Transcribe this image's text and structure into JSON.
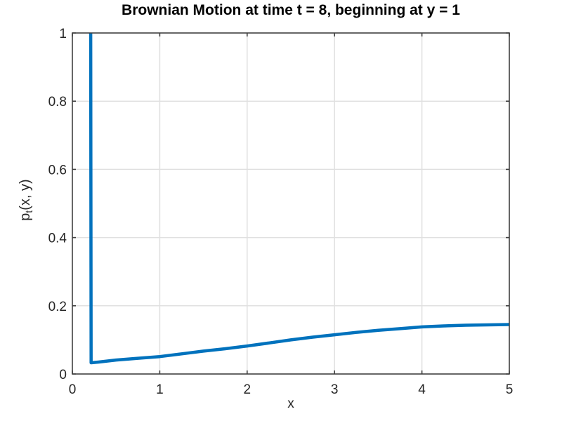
{
  "colors": {
    "background": "#ffffff",
    "axis_frame": "#404040",
    "grid": "#e0e0e0",
    "curve": "#0072BD",
    "title_text": "#000000",
    "tick_text": "#262626"
  },
  "chart_data": {
    "type": "line",
    "title": "Brownian Motion at time t = 8, beginning at y = 1",
    "xlabel": "x",
    "ylabel": "p_t(x, y)",
    "ylabel_parts": {
      "base": "p",
      "sub": "t",
      "rest": "(x, y)"
    },
    "xlim": [
      0,
      5
    ],
    "ylim": [
      0,
      1
    ],
    "xticks": [
      0,
      1,
      2,
      3,
      4,
      5
    ],
    "xtick_labels": [
      "0",
      "1",
      "2",
      "3",
      "4",
      "5"
    ],
    "yticks": [
      0,
      0.2,
      0.4,
      0.6,
      0.8,
      1
    ],
    "ytick_labels": [
      "0",
      "0.2",
      "0.4",
      "0.6",
      "0.8",
      "1"
    ],
    "grid": true,
    "box": true,
    "tick_direction": "in",
    "legend": null,
    "line_width": 4.5,
    "series": [
      {
        "name": "p_t(x, y)",
        "color": "#0072BD",
        "clipped_at_top": true,
        "spike_x": 0.21,
        "points": [
          [
            0.21,
            1.0
          ],
          [
            0.215,
            0.033
          ],
          [
            0.3,
            0.035
          ],
          [
            0.5,
            0.041
          ],
          [
            0.75,
            0.046
          ],
          [
            1.0,
            0.051
          ],
          [
            1.25,
            0.059
          ],
          [
            1.5,
            0.067
          ],
          [
            1.75,
            0.074
          ],
          [
            2.0,
            0.082
          ],
          [
            2.25,
            0.091
          ],
          [
            2.5,
            0.1
          ],
          [
            2.75,
            0.108
          ],
          [
            3.0,
            0.115
          ],
          [
            3.25,
            0.122
          ],
          [
            3.5,
            0.128
          ],
          [
            3.75,
            0.133
          ],
          [
            4.0,
            0.138
          ],
          [
            4.25,
            0.141
          ],
          [
            4.5,
            0.143
          ],
          [
            4.75,
            0.144
          ],
          [
            5.0,
            0.145
          ]
        ]
      }
    ]
  }
}
